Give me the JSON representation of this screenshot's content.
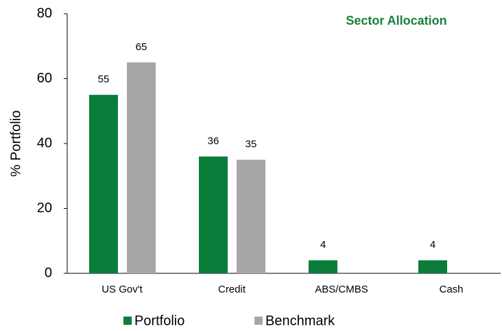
{
  "chart_data": {
    "type": "bar",
    "title": "Sector Allocation",
    "y_label": "% Portfolio",
    "categories": [
      "US Gov't",
      "Credit",
      "ABS/CMBS",
      "Cash"
    ],
    "series": [
      {
        "name": "Portfolio",
        "color": "#0b7d3b",
        "values": [
          55,
          36,
          4,
          4
        ]
      },
      {
        "name": "Benchmark",
        "color": "#a6a6a6",
        "values": [
          65,
          35,
          null,
          null
        ]
      }
    ],
    "ylim": [
      0,
      80
    ],
    "yticks": [
      0,
      20,
      40,
      60,
      80
    ],
    "grid": false,
    "legend": "bottom"
  }
}
